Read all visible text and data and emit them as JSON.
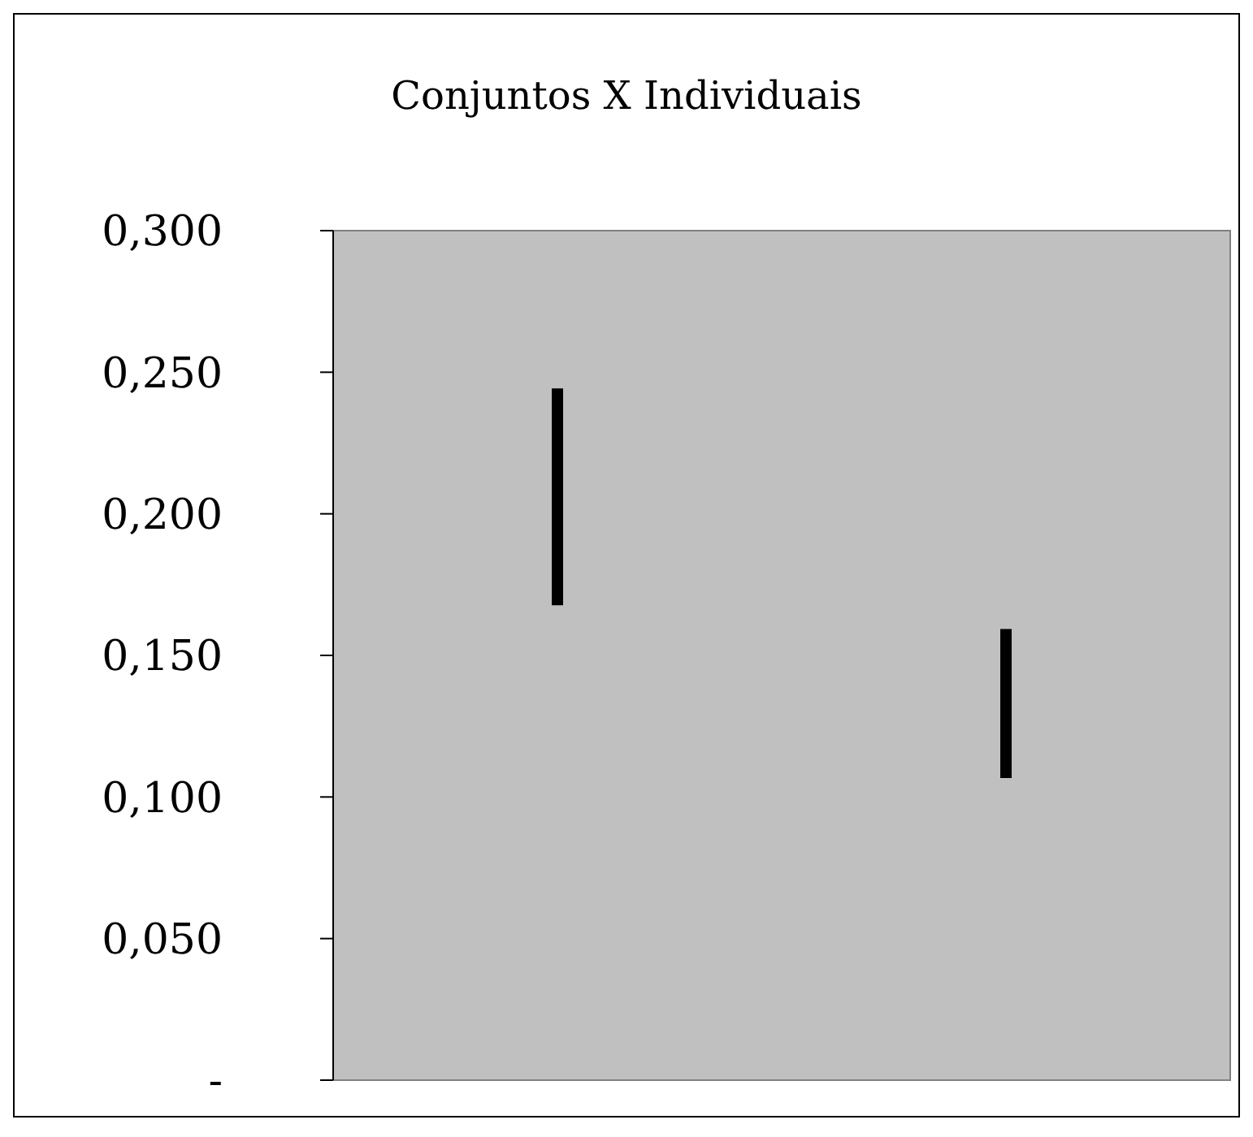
{
  "chart_data": {
    "type": "bar",
    "title": "Conjuntos X Individuais",
    "categories": [
      null,
      null
    ],
    "base": [
      0.168,
      0.107
    ],
    "values": [
      0.076,
      0.052
    ],
    "color": "#000000",
    "ylim": [
      0,
      0.3
    ],
    "yticks": [
      {
        "value": 0,
        "label": "-"
      },
      {
        "value": 0.05,
        "label": "0,050"
      },
      {
        "value": 0.1,
        "label": "0,100"
      },
      {
        "value": 0.15,
        "label": "0,150"
      },
      {
        "value": 0.2,
        "label": "0,200"
      },
      {
        "value": 0.25,
        "label": "0,250"
      },
      {
        "value": 0.3,
        "label": "0,300"
      }
    ],
    "tick_labels": "y"
  }
}
